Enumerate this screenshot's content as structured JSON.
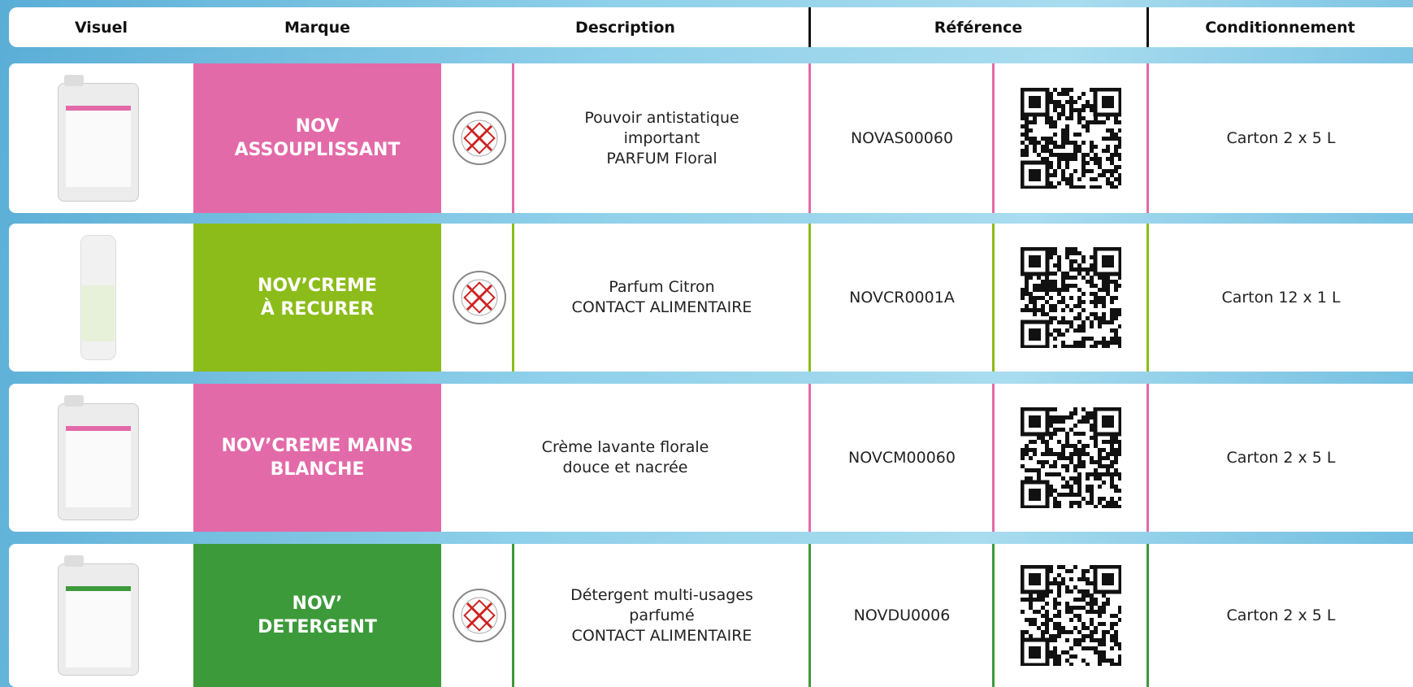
{
  "header": {
    "columns": [
      "Visuel",
      "Marque",
      "Description",
      "Référence",
      "Conditionnement"
    ]
  },
  "rows": [
    {
      "brand": [
        "NOV",
        "ASSOUPLISSANT"
      ],
      "description": [
        "Pouvoir antistatique",
        "important",
        "PARFUM Floral"
      ],
      "reference": "NOVAS00060",
      "packaging": "Carton 2 x 5 L",
      "accent": "#e36aa8",
      "clp": true
    },
    {
      "brand": [
        "NOV’CREME",
        "À RECURER"
      ],
      "description": [
        "Parfum Citron",
        "CONTACT ALIMENTAIRE"
      ],
      "reference": "NOVCR0001A",
      "packaging": "Carton 12 x 1 L",
      "accent": "#8cbc1a",
      "clp": true
    },
    {
      "brand": [
        "NOV’CREME MAINS",
        "BLANCHE"
      ],
      "description": [
        "Crème lavante florale",
        "douce et nacrée"
      ],
      "reference": "NOVCM00060",
      "packaging": "Carton 2 x 5 L",
      "accent": "#e36aa8",
      "clp": false
    },
    {
      "brand": [
        "NOV’",
        "DETERGENT"
      ],
      "description": [
        "Détergent multi-usages",
        "parfumé",
        "CONTACT ALIMENTAIRE"
      ],
      "reference": "NOVDU0006",
      "packaging": "Carton 2 x 5 L",
      "accent": "#3c9a3a",
      "clp": true
    }
  ]
}
